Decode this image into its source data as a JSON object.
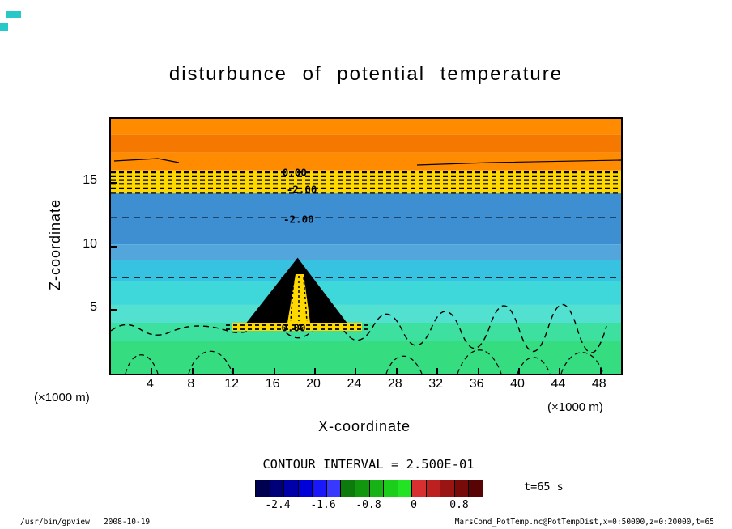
{
  "title": "disturbunce of potential temperature",
  "axes": {
    "x_title": "X-coordinate",
    "y_title": "Z-coordinate",
    "x_unit": "(×1000 m)",
    "y_unit": "(×1000 m)"
  },
  "legend": {
    "contour_interval_text": "CONTOUR INTERVAL = 2.500E-01",
    "time_label": "t=65 s",
    "colorbar": {
      "range": [
        -2.8,
        1.2
      ],
      "tick_values": [
        -2.4,
        -1.6,
        -0.8,
        0,
        0.8
      ],
      "tick_labels": [
        "-2.4",
        "-1.6",
        "-0.8",
        "0",
        "0.8"
      ],
      "colors": [
        "#000050",
        "#000078",
        "#0000A8",
        "#0000D8",
        "#1818F8",
        "#3838FF",
        "#0C7A0C",
        "#12960F",
        "#16B216",
        "#1CCE1C",
        "#24E224",
        "#D83030",
        "#BC2020",
        "#9A1414",
        "#780A0A",
        "#580404"
      ]
    }
  },
  "footer": {
    "left_text": "/usr/bin/gpview   2008-10-19",
    "right_text": "MarsCond_PotTemp.nc@PotTempDist,x=0:50000,z=0:20000,t=65"
  },
  "palette": {
    "orange": "#FF8C00",
    "orange_dark": "#F57800",
    "yellow": "#FFD800",
    "blue": "#3E8ED2",
    "blue_light": "#52A6DC",
    "cyan_blue": "#38C2E2",
    "cyan": "#3FD8DA",
    "cyan_light": "#52E0D0",
    "teal_green": "#3EE0A0",
    "green": "#35DC80",
    "contour_black": "#000000",
    "artifact_cyan": "#28C8C8"
  },
  "chart_data": {
    "type": "heatmap",
    "title": "disturbunce of potential temperature",
    "xlabel": "X-coordinate",
    "ylabel": "Z-coordinate",
    "x_units": "×1000 m",
    "y_units": "×1000 m",
    "xlim": [
      0,
      50
    ],
    "ylim": [
      0,
      20
    ],
    "x_ticks": [
      4,
      8,
      12,
      16,
      20,
      24,
      28,
      32,
      36,
      40,
      44,
      48
    ],
    "y_ticks": [
      5,
      10,
      15
    ],
    "contour_interval": 0.25,
    "contour_labels": [
      {
        "text": "0.00",
        "x": 18.0,
        "z": 15.8
      },
      {
        "text": "-2.00",
        "x": 18.7,
        "z": 14.5
      },
      {
        "text": "-2.00",
        "x": 18.4,
        "z": 12.1
      },
      {
        "text": "0.00",
        "x": 17.9,
        "z": 3.6
      }
    ],
    "heavy_dashed_levels": [
      15.8,
      15.5,
      15.2,
      14.9,
      14.55,
      14.2
    ],
    "light_dashed_levels": [
      12.25,
      7.55
    ],
    "fill_bands": [
      {
        "z_from": 18.75,
        "z_to": 20.0,
        "color": "orange"
      },
      {
        "z_from": 17.35,
        "z_to": 18.75,
        "color": "orange_dark"
      },
      {
        "z_from": 15.95,
        "z_to": 17.35,
        "color": "orange"
      },
      {
        "z_from": 14.15,
        "z_to": 15.95,
        "color": "yellow"
      },
      {
        "z_from": 10.15,
        "z_to": 14.15,
        "color": "blue"
      },
      {
        "z_from": 8.9,
        "z_to": 10.15,
        "color": "blue_light"
      },
      {
        "z_from": 7.3,
        "z_to": 8.9,
        "color": "cyan_blue"
      },
      {
        "z_from": 5.4,
        "z_to": 7.3,
        "color": "cyan"
      },
      {
        "z_from": 4.0,
        "z_to": 5.4,
        "color": "cyan_light"
      },
      {
        "z_from": 2.55,
        "z_to": 4.0,
        "color": "teal_green"
      },
      {
        "z_from": 0.0,
        "z_to": 2.55,
        "color": "green"
      }
    ],
    "mountain": {
      "apex_x": 18.3,
      "apex_z": 9.1,
      "base_left_x": 12.7,
      "base_right_x": 23.7,
      "base_z": 3.4
    }
  }
}
